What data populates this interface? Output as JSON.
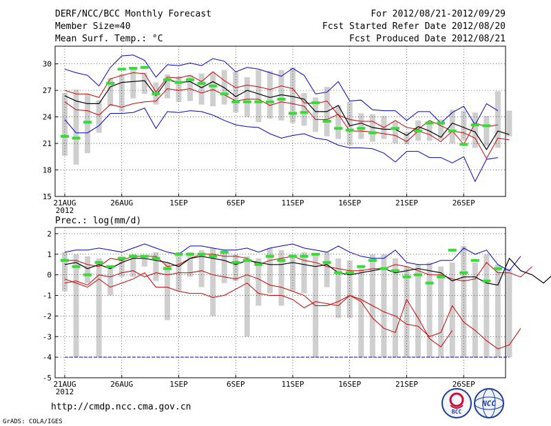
{
  "header": {
    "title": "DERF/NCC/BCC Monthly Forecast",
    "member_size": "Member Size=40",
    "variable_temp": "Mean Surf. Temp.: °C",
    "period": "For 2012/08/21-2012/09/29",
    "start_date": "Fcst Started Refer Date 2012/08/20",
    "produced_date": "Fcst Produced Date 2012/08/21"
  },
  "footer": {
    "url": "http://cmdp.ncc.cma.gov.cn",
    "grads": "GrADS: COLA/IGES",
    "logo_bcc": "BCC",
    "logo_ncc": "NCC"
  },
  "chart_data": [
    {
      "type": "line",
      "title": "Mean Surf. Temp.: °C",
      "ylim": [
        15,
        32
      ],
      "yticks": [
        15,
        18,
        21,
        24,
        27,
        30
      ],
      "x_tick_days": [
        1,
        6,
        11,
        16,
        21,
        26,
        31,
        36
      ],
      "x_tick_labels": [
        "21AUG",
        "26AUG",
        "1SEP",
        "6SEP",
        "11SEP",
        "16SEP",
        "21SEP",
        "26SEP"
      ],
      "x_year_label": "2012",
      "grid": true,
      "series": [
        {
          "name": "max",
          "color": "#0000cc",
          "values": [
            29.4,
            29.0,
            28.7,
            27.5,
            29.6,
            30.9,
            31.0,
            30.4,
            28.5,
            29.9,
            29.8,
            30.1,
            29.8,
            30.6,
            30.3,
            29.1,
            29.6,
            29.4,
            29.0,
            28.6,
            29.5,
            28.7,
            26.6,
            26.8,
            28.0,
            25.8,
            25.9,
            24.8,
            24.7,
            24.7,
            23.6,
            24.6,
            24.6,
            23.3,
            24.5,
            25.2,
            23.1,
            25.5,
            24.7
          ]
        },
        {
          "name": "p90",
          "color": "#cc0000",
          "values": [
            27.0,
            26.6,
            26.6,
            26.2,
            28.3,
            28.7,
            29.0,
            28.9,
            26.8,
            28.5,
            28.4,
            28.7,
            28.0,
            29.1,
            28.1,
            27.3,
            27.6,
            27.4,
            27.1,
            27.5,
            27.2,
            25.6,
            25.5,
            25.8,
            24.2,
            23.7,
            23.5,
            23.5,
            22.8,
            23.6,
            22.8,
            22.6,
            23.6,
            23.0,
            22.4,
            20.9,
            23.3,
            22.9,
            23.1
          ]
        },
        {
          "name": "mean",
          "color": "#000000",
          "values": [
            26.4,
            25.8,
            25.5,
            25.5,
            27.4,
            27.9,
            28.0,
            28.1,
            26.4,
            28.2,
            27.9,
            28.0,
            27.3,
            28.0,
            27.3,
            26.3,
            27.0,
            26.6,
            26.2,
            26.5,
            26.3,
            26.0,
            24.6,
            24.6,
            25.3,
            23.0,
            23.3,
            22.8,
            22.6,
            22.6,
            21.9,
            22.9,
            22.4,
            21.7,
            23.3,
            22.8,
            22.3,
            20.3,
            22.4,
            22.0
          ]
        },
        {
          "name": "p10",
          "color": "#cc0000",
          "values": [
            25.7,
            24.8,
            24.7,
            24.2,
            25.4,
            25.1,
            25.5,
            25.7,
            25.8,
            27.2,
            27.0,
            27.2,
            26.7,
            27.1,
            26.5,
            25.8,
            26.0,
            26.0,
            25.3,
            25.7,
            25.5,
            25.2,
            23.7,
            23.7,
            24.3,
            22.4,
            22.4,
            22.3,
            22.1,
            21.9,
            21.2,
            22.4,
            22.0,
            21.2,
            22.4,
            22.2,
            21.6,
            19.3,
            21.6,
            21.4
          ]
        },
        {
          "name": "min",
          "color": "#0000cc",
          "values": [
            23.7,
            22.2,
            22.2,
            23.0,
            24.4,
            24.4,
            24.5,
            25.0,
            22.7,
            24.6,
            24.5,
            24.7,
            24.6,
            24.2,
            23.6,
            23.1,
            22.9,
            22.8,
            22.1,
            21.6,
            21.9,
            22.1,
            21.6,
            21.4,
            20.8,
            20.5,
            20.5,
            20.4,
            19.9,
            18.9,
            20.1,
            20.1,
            19.4,
            19.4,
            18.8,
            19.5,
            16.7,
            19.2,
            19.4
          ]
        }
      ],
      "boxes": {
        "low": [
          19.6,
          18.6,
          19.9,
          22.2,
          25.2,
          24.6,
          26.1,
          26.6,
          25.4,
          26.1,
          25.7,
          25.8,
          25.4,
          25.2,
          25.4,
          24.5,
          24.0,
          23.4,
          23.8,
          23.6,
          23.3,
          23.0,
          22.3,
          21.8,
          21.5,
          20.8,
          21.5,
          21.2,
          21.5,
          21.0,
          20.9,
          21.3,
          21.3,
          21.4,
          21.0,
          21.4,
          20.5,
          20.7,
          20.5,
          21.8
        ],
        "high": [
          26.7,
          27.1,
          26.6,
          25.9,
          28.4,
          28.8,
          29.6,
          29.0,
          27.9,
          28.8,
          28.6,
          28.7,
          28.9,
          29.0,
          29.3,
          29.1,
          28.5,
          29.3,
          29.2,
          29.3,
          29.6,
          26.7,
          26.2,
          27.4,
          25.3,
          25.7,
          24.4,
          24.3,
          24.1,
          23.5,
          22.3,
          23.6,
          23.5,
          23.7,
          24.8,
          24.7,
          24.5,
          24.1,
          26.9,
          24.7
        ],
        "marker": [
          21.8,
          21.6,
          23.4,
          null,
          27.8,
          29.4,
          29.5,
          29.6,
          26.6,
          28.2,
          27.9,
          28.2,
          27.8,
          27.5,
          26.6,
          25.7,
          25.7,
          25.7,
          25.7,
          26.0,
          24.4,
          24.5,
          25.6,
          23.5,
          22.7,
          22.5,
          22.7,
          22.2,
          null,
          22.7,
          null,
          22.4,
          23.3,
          23.3,
          22.4,
          20.9,
          23.1,
          23.0
        ]
      }
    },
    {
      "type": "line",
      "title": "Prec.: log(mm/d)",
      "ylim": [
        -5,
        2.3
      ],
      "yticks": [
        -5,
        -4,
        -3,
        -2,
        -1,
        0,
        1,
        2
      ],
      "x_tick_days": [
        1,
        6,
        11,
        16,
        21,
        26,
        31,
        36
      ],
      "x_tick_labels": [
        "21AUG",
        "26AUG",
        "1SEP",
        "6SEP",
        "11SEP",
        "16SEP",
        "21SEP",
        "26SEP"
      ],
      "x_year_label": "2012",
      "grid": true,
      "floor_line": -4,
      "series": [
        {
          "name": "max",
          "color": "#0000cc",
          "values": [
            1.1,
            1.2,
            1.2,
            1.3,
            1.2,
            1.1,
            1.3,
            1.5,
            1.3,
            1.1,
            1.0,
            1.4,
            1.4,
            1.3,
            1.2,
            1.2,
            1.3,
            1.1,
            1.3,
            1.4,
            1.5,
            1.3,
            1.2,
            1.1,
            1.4,
            1.1,
            0.9,
            0.8,
            0.8,
            1.2,
            0.6,
            0.5,
            0.5,
            0.7,
            0.7,
            1.3,
            1.0,
            1.2,
            0.5,
            0.2,
            0.9
          ]
        },
        {
          "name": "p90",
          "color": "#cc0000",
          "values": [
            0.7,
            0.7,
            0.5,
            0.4,
            0.8,
            0.7,
            0.9,
            0.9,
            0.9,
            0.4,
            0.5,
            0.8,
            1.0,
            1.0,
            0.9,
            0.9,
            0.8,
            0.5,
            0.7,
            0.8,
            0.9,
            0.7,
            0.6,
            0.4,
            0.3,
            0.2,
            0.2,
            0.3,
            0.3,
            0.5,
            0.4,
            0.2,
            0.0,
            0.0,
            -0.2,
            -0.3,
            -0.2,
            0.6,
            0.1,
            0.1,
            -0.1,
            0.4
          ]
        },
        {
          "name": "mean",
          "color": "#000000",
          "values": [
            0.5,
            0.6,
            0.3,
            0.5,
            0.3,
            0.6,
            0.8,
            0.8,
            0.7,
            0.6,
            0.4,
            0.8,
            0.9,
            0.8,
            0.7,
            0.5,
            0.7,
            0.6,
            0.5,
            0.5,
            0.6,
            0.5,
            0.4,
            0.5,
            0.1,
            0.0,
            0.1,
            0.2,
            0.3,
            0.1,
            0.2,
            0.3,
            0.2,
            0.1,
            -0.3,
            -0.1,
            -0.1,
            -0.4,
            -0.5,
            0.8,
            0.2,
            0.0,
            -0.4,
            0.1
          ]
        },
        {
          "name": "p10",
          "color": "#cc0000",
          "values": [
            -0.4,
            -0.3,
            -0.5,
            0.0,
            -0.1,
            0.1,
            0.2,
            -0.1,
            0.1,
            0.0,
            0.1,
            0.1,
            0.2,
            0.0,
            -0.1,
            -0.2,
            0.0,
            -0.2,
            -0.5,
            -0.6,
            -0.8,
            -1.0,
            -1.5,
            -1.5,
            -1.3,
            -1.0,
            -1.2,
            -1.5,
            -1.8,
            -2.0,
            -2.4,
            -2.5,
            -3.0,
            -2.8,
            -1.5,
            -2.3,
            -2.7,
            -3.2,
            -3.6,
            -3.4,
            -2.6
          ]
        },
        {
          "name": "min",
          "color": "#cc0000",
          "values": [
            -0.2,
            -0.4,
            -0.6,
            -0.2,
            -0.6,
            -0.4,
            -0.2,
            0.1,
            -0.6,
            -0.6,
            -0.8,
            -0.9,
            -0.9,
            -1.1,
            -1.0,
            -0.7,
            -0.4,
            -0.9,
            -1.0,
            -1.0,
            -1.2,
            -1.6,
            -1.3,
            -1.4,
            -1.5,
            -1.0,
            -1.3,
            -2.1,
            -2.6,
            -2.8,
            -1.2,
            -2.1,
            -3.1,
            -3.5,
            -2.7
          ]
        }
      ],
      "boxes": {
        "low": [
          -0.8,
          -4.0,
          -0.4,
          -4.0,
          -1.0,
          -0.1,
          -0.1,
          0.4,
          -0.3,
          -2.2,
          -0.8,
          -0.1,
          -0.6,
          -2.0,
          -0.4,
          -0.3,
          -3.0,
          -1.5,
          -0.9,
          -1.5,
          -0.8,
          -0.9,
          -4.0,
          -0.6,
          -2.1,
          -2.1,
          -4.0,
          -4.0,
          -4.0,
          -4.0,
          -4.0,
          -4.0,
          -4.0,
          -4.0,
          -4.0,
          -4.0,
          -4.0,
          -4.0,
          -4.0,
          -4.0
        ],
        "high": [
          1.1,
          1.0,
          0.9,
          0.8,
          0.4,
          0.9,
          1.0,
          0.8,
          1.1,
          0.6,
          1.1,
          1.1,
          1.2,
          1.3,
          1.2,
          1.0,
          0.9,
          0.8,
          1.3,
          1.2,
          1.0,
          1.1,
          1.0,
          1.1,
          0.8,
          0.7,
          0.3,
          1.0,
          1.0,
          0.8,
          0.4,
          0.5,
          0.6,
          0.4,
          0.6,
          1.4,
          0.6,
          1.0,
          0.5,
          0.3
        ],
        "marker": [
          0.7,
          0.4,
          0.0,
          0.6,
          0.4,
          0.8,
          0.9,
          0.9,
          0.8,
          0.3,
          1.0,
          1.0,
          1.0,
          0.9,
          1.1,
          0.6,
          0.7,
          0.5,
          0.9,
          0.7,
          0.9,
          0.9,
          1.0,
          0.6,
          0.1,
          0.1,
          0.4,
          0.7,
          0.3,
          0.2,
          -0.1,
          0.0,
          -0.4,
          -0.1,
          1.2,
          0.1,
          0.7,
          -0.3,
          0.3
        ]
      }
    }
  ]
}
